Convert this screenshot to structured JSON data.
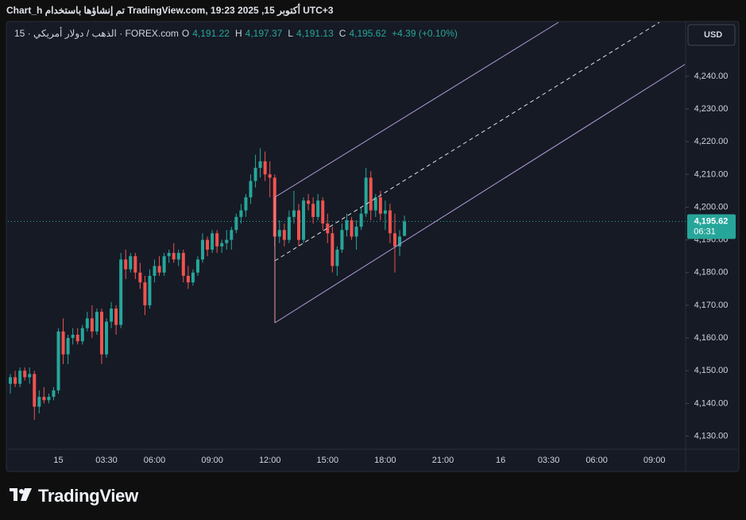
{
  "header": "Chart_h تم إنشاؤها باستخدام TradingView.com, 19:23 2025 ,15 أكتوبر UTC+3",
  "legend": {
    "symbol": "15 · الذهب / دولار أمريكي · FOREX.com",
    "open_key": "O",
    "open": "4,191.22",
    "high_key": "H",
    "high": "4,197.37",
    "low_key": "L",
    "low": "4,191.13",
    "close_key": "C",
    "close": "4,195.62",
    "change": "+4.39 (+0.10%)"
  },
  "currency": "USD",
  "brand": "TradingView",
  "chart_data": {
    "type": "candlestick",
    "up_color": "#26a69a",
    "down_color": "#ef5350",
    "categories": [
      null,
      null,
      null,
      null,
      null,
      null,
      null,
      null,
      null,
      null,
      "15",
      null,
      null,
      null,
      null,
      null,
      null,
      null,
      null,
      null,
      "03:30",
      null,
      null,
      null,
      null,
      null,
      null,
      null,
      null,
      null,
      "06:00",
      null,
      null,
      null,
      null,
      null,
      null,
      null,
      null,
      null,
      null,
      null,
      "09:00",
      null,
      null,
      null,
      null,
      null,
      null,
      null,
      null,
      null,
      null,
      null,
      "12:00",
      null,
      null,
      null,
      null,
      null,
      null,
      null,
      null,
      null,
      null,
      null,
      "15:00",
      null,
      null,
      null,
      null,
      null,
      null,
      null,
      null,
      null,
      null,
      null,
      "18:00",
      null,
      null,
      null,
      null,
      null,
      null,
      null,
      null,
      null,
      null,
      null,
      "21:00",
      null,
      null,
      null,
      null,
      null,
      null,
      null,
      null,
      null,
      null,
      null,
      "16",
      null,
      null,
      null,
      null,
      null,
      null,
      null,
      null,
      null,
      "03:30",
      null,
      null,
      null,
      null,
      null,
      null,
      null,
      null,
      null,
      "06:00",
      null,
      null,
      null,
      null,
      null,
      null,
      null,
      null,
      null,
      null,
      null,
      "09:00",
      null,
      null,
      null,
      null,
      null,
      null
    ],
    "open": [
      4146,
      4148,
      4146,
      4150,
      4148,
      4149,
      4139,
      4142,
      4141,
      4142,
      4144,
      4162,
      4155,
      4160,
      4161,
      4159,
      4163,
      4166,
      4162,
      4168,
      4155,
      4165,
      4169,
      4164,
      4184,
      4181,
      4185,
      4180,
      4177,
      4170,
      4179,
      4182,
      4180,
      4185,
      4186,
      4184,
      4186,
      4179,
      4177,
      4180,
      4184,
      4190,
      4187,
      4192,
      4188,
      4189,
      4190,
      4193,
      4197,
      4199,
      4203,
      4208,
      4212,
      4214,
      4210,
      4209,
      4191,
      4193,
      4190,
      4197,
      4199,
      4190,
      4202,
      4201,
      4197,
      4202,
      4195,
      4192,
      4182,
      4187,
      4193,
      4196,
      4191,
      4194,
      4198,
      4209,
      4199,
      4203,
      4198,
      4199,
      4192,
      4188,
      4191.22,
      null,
      null,
      null,
      null,
      null,
      null,
      null,
      null,
      null,
      null,
      null,
      null,
      null,
      null,
      null,
      null,
      null,
      null,
      null,
      null,
      null,
      null,
      null,
      null,
      null,
      null,
      null,
      null,
      null,
      null,
      null,
      null,
      null,
      null,
      null,
      null,
      null,
      null,
      null,
      null,
      null,
      null,
      null,
      null,
      null,
      null,
      null,
      null,
      null,
      null,
      null,
      null,
      null,
      null,
      null,
      null,
      null,
      null
    ],
    "high": [
      4149,
      4150,
      4151,
      4151,
      4151,
      4150,
      4144,
      4145,
      4143,
      4145,
      4163,
      4166,
      4161,
      4163,
      4163,
      4164,
      4168,
      4170,
      4169,
      4169,
      4166,
      4171,
      4170,
      4186,
      4187,
      4186,
      4186,
      4183,
      4179,
      4181,
      4184,
      4185,
      4186,
      4187,
      4189,
      4187,
      4187,
      4182,
      4181,
      4185,
      4192,
      4191,
      4193,
      4193,
      4190,
      4193,
      4194,
      4198,
      4201,
      4204,
      4210,
      4216,
      4218,
      4217,
      4214,
      4210,
      4196,
      4195,
      4199,
      4205,
      4201,
      4203,
      4204,
      4203,
      4204,
      4203,
      4198,
      4194,
      4188,
      4195,
      4198,
      4197,
      4196,
      4200,
      4212,
      4211,
      4204,
      4205,
      4202,
      4201,
      4198,
      4193,
      4197.37,
      null,
      null,
      null,
      null,
      null,
      null,
      null,
      null,
      null,
      null,
      null,
      null,
      null,
      null,
      null,
      null,
      null,
      null,
      null,
      null,
      null,
      null,
      null,
      null,
      null,
      null,
      null,
      null,
      null,
      null,
      null,
      null,
      null,
      null,
      null,
      null,
      null,
      null,
      null,
      null,
      null,
      null,
      null,
      null,
      null,
      null,
      null,
      null,
      null,
      null,
      null,
      null,
      null,
      null,
      null,
      null,
      null,
      null
    ],
    "low": [
      4143,
      4145,
      4145,
      4147,
      4146,
      4135,
      4137,
      4140,
      4140,
      4141,
      4143,
      4152,
      4152,
      4158,
      4158,
      4158,
      4162,
      4160,
      4161,
      4152,
      4154,
      4163,
      4161,
      4163,
      4178,
      4180,
      4178,
      4175,
      4167,
      4169,
      4177,
      4179,
      4179,
      4183,
      4183,
      4182,
      4177,
      4175,
      4176,
      4179,
      4183,
      4185,
      4186,
      4186,
      4186,
      4187,
      4187,
      4192,
      4195,
      4197,
      4201,
      4206,
      4209,
      4208,
      4203,
      4188,
      4189,
      4188,
      4189,
      4195,
      4188,
      4189,
      4199,
      4195,
      4196,
      4193,
      4189,
      4180,
      4179,
      4186,
      4191,
      4190,
      4187,
      4193,
      4197,
      4196,
      4197,
      4196,
      4193,
      4189,
      4180,
      4185,
      4191.13,
      null,
      null,
      null,
      null,
      null,
      null,
      null,
      null,
      null,
      null,
      null,
      null,
      null,
      null,
      null,
      null,
      null,
      null,
      null,
      null,
      null,
      null,
      null,
      null,
      null,
      null,
      null,
      null,
      null,
      null,
      null,
      null,
      null,
      null,
      null,
      null,
      null,
      null,
      null,
      null,
      null,
      null,
      null,
      null,
      null,
      null,
      null,
      null,
      null,
      null,
      null,
      null,
      null,
      null,
      null,
      null,
      null,
      null
    ],
    "close": [
      4148,
      4146,
      4150,
      4148,
      4149,
      4139,
      4142,
      4141,
      4142,
      4144,
      4162,
      4155,
      4160,
      4161,
      4159,
      4163,
      4166,
      4162,
      4168,
      4155,
      4165,
      4169,
      4164,
      4184,
      4181,
      4185,
      4180,
      4177,
      4170,
      4179,
      4182,
      4180,
      4185,
      4186,
      4184,
      4186,
      4179,
      4177,
      4180,
      4184,
      4190,
      4187,
      4192,
      4188,
      4189,
      4190,
      4193,
      4197,
      4199,
      4203,
      4208,
      4212,
      4214,
      4210,
      4209,
      4191,
      4193,
      4190,
      4197,
      4199,
      4190,
      4202,
      4201,
      4197,
      4202,
      4195,
      4192,
      4182,
      4187,
      4193,
      4196,
      4191,
      4194,
      4198,
      4209,
      4199,
      4203,
      4198,
      4199,
      4192,
      4188,
      4191,
      4195.62,
      null,
      null,
      null,
      null,
      null,
      null,
      null,
      null,
      null,
      null,
      null,
      null,
      null,
      null,
      null,
      null,
      null,
      null,
      null,
      null,
      null,
      null,
      null,
      null,
      null,
      null,
      null,
      null,
      null,
      null,
      null,
      null,
      null,
      null,
      null,
      null,
      null,
      null,
      null,
      null,
      null,
      null,
      null,
      null,
      null,
      null,
      null,
      null,
      null,
      null,
      null,
      null,
      null,
      null,
      null,
      null,
      null,
      null
    ],
    "ylim": [
      4126,
      4256.5
    ],
    "yticks": [
      {
        "value": 4130,
        "label": "4,130.00"
      },
      {
        "value": 4140,
        "label": "4,140.00"
      },
      {
        "value": 4150,
        "label": "4,150.00"
      },
      {
        "value": 4160,
        "label": "4,160.00"
      },
      {
        "value": 4170,
        "label": "4,170.00"
      },
      {
        "value": 4180,
        "label": "4,180.00"
      },
      {
        "value": 4190,
        "label": "4,190.00"
      },
      {
        "value": 4200,
        "label": "4,200.00"
      },
      {
        "value": 4210,
        "label": "4,210.00"
      },
      {
        "value": 4220,
        "label": "4,220.00"
      },
      {
        "value": 4230,
        "label": "4,230.00"
      },
      {
        "value": 4240,
        "label": "4,240.00"
      }
    ],
    "last_price": {
      "value": 4195.62,
      "label": "4,195.62"
    },
    "countdown": "06:31"
  }
}
